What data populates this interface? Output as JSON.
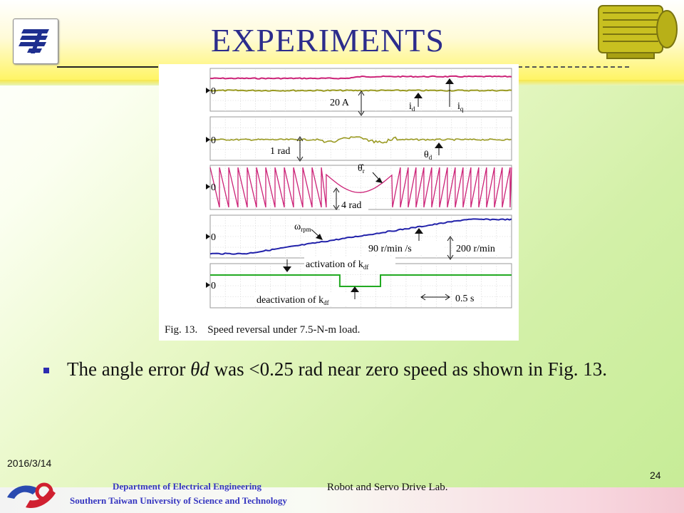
{
  "slide": {
    "title": "EXPERIMENTS",
    "bullet": {
      "before": "The angle error ",
      "symbol": "θd",
      "after": " was <0.25 rad near zero speed as shown in Fig. 13."
    },
    "date": "2016/3/14",
    "page_number": "24",
    "footer": {
      "department": "Department of Electrical Engineering",
      "university": "Southern Taiwan University of Science and Technology",
      "lab": "Robot and Servo Drive Lab."
    }
  },
  "figure": {
    "caption_label": "Fig. 13.",
    "caption_text": "Speed reversal under 7.5-N-m load."
  },
  "chart_data": {
    "type": "line",
    "title": "Speed reversal under 7.5-N-m load.",
    "time_per_division": "0.5 s",
    "panels": [
      {
        "id": "currents",
        "zero_label": "0",
        "scale_label": "20 A",
        "series": [
          {
            "name": "iq",
            "label_base": "i",
            "label_sub": "q",
            "color": "#cc2277",
            "level": 1.0
          },
          {
            "name": "id",
            "label_base": "i",
            "label_sub": "d",
            "color": "#9a9a22",
            "level": 0.0
          }
        ]
      },
      {
        "id": "angle-error",
        "zero_label": "0",
        "scale_label": "1 rad",
        "series": [
          {
            "name": "θd",
            "label_base": "θ",
            "label_sub": "d",
            "color": "#9a9a22",
            "level": 0.0,
            "max_deviation_rad": 0.25
          }
        ]
      },
      {
        "id": "rotor-angle",
        "zero_label": "0",
        "scale_label": "4 rad",
        "series": [
          {
            "name": "θr",
            "label_base": "θ̂",
            "label_sub": "r",
            "color": "#cc2277",
            "shape": "sawtooth"
          }
        ]
      },
      {
        "id": "speed",
        "zero_label": "0",
        "scale_label": "200 r/min",
        "slope_label": "90 r/min /s",
        "series": [
          {
            "name": "ωrpm",
            "label_base": "ω",
            "label_sub": "rpm",
            "color": "#2222aa",
            "start_rpm": -200,
            "end_rpm": 200
          }
        ]
      },
      {
        "id": "kdf",
        "zero_label": "0",
        "series": [
          {
            "name": "kdf",
            "color": "#22aa22"
          }
        ],
        "annotations": [
          {
            "text": "activation of k",
            "sub": "df"
          },
          {
            "text": "deactivation of k",
            "sub": "df"
          }
        ]
      }
    ]
  }
}
